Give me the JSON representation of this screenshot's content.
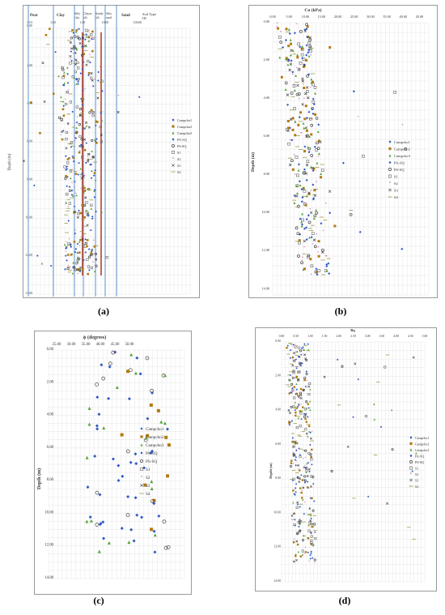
{
  "chart_data": [
    {
      "panel": "(a)",
      "type": "scatter",
      "xlabel": "",
      "ylabel": "Depth (m)",
      "header_zones": [
        "Peat",
        "Clay",
        "Silty clay",
        "Clayey silt",
        "Sandy silt",
        "Silty sand",
        "Sand"
      ],
      "header_right": "Soil Type ID",
      "xticks": [
        "0.01",
        "0.10",
        "1.00",
        "10.00",
        "100.00"
      ],
      "yticks": [
        "0.00",
        "2.00",
        "4.00",
        "6.00",
        "8.00",
        "10.00",
        "12.00",
        "14.00"
      ],
      "ylim": [
        0,
        14
      ],
      "legend": [
        "Campcho1",
        "Campcho2",
        "Campcho3",
        "PA-SQ",
        "PS-SQ",
        "S1",
        "S2",
        "S3",
        "S4"
      ],
      "series_colors": [
        "#3355cc",
        "#b8860b",
        "#66aa44",
        "#3366cc",
        "#555555",
        "#888888",
        "#cc44aa",
        "#444444",
        "#999966"
      ],
      "zone_boundaries": [
        0.12,
        0.27,
        0.32,
        0.38,
        0.46,
        0.55
      ],
      "red_lines": [
        0.36,
        0.49
      ],
      "points": []
    },
    {
      "panel": "(b)",
      "type": "scatter",
      "xlabel": "Cu (kPa)",
      "ylabel": "Depth (m)",
      "xticks": [
        "0.00",
        "5.00",
        "10.00",
        "15.00",
        "20.00",
        "25.00",
        "30.00",
        "35.00",
        "40.00",
        "45.00"
      ],
      "yticks": [
        "0.00",
        "2.00",
        "4.00",
        "6.00",
        "8.00",
        "10.00",
        "12.00",
        "14.00"
      ],
      "xlim": [
        0,
        45
      ],
      "ylim": [
        0,
        14
      ],
      "legend": [
        "Campcho1",
        "Campcho2",
        "Campcho3",
        "PA-SQ",
        "PS-SQ",
        "S1",
        "S2",
        "S3",
        "S4"
      ],
      "series": []
    },
    {
      "panel": "(c)",
      "type": "scatter",
      "xlabel": "ϕ (degrees)",
      "ylabel": "Depth (m)",
      "xticks": [
        "25.00",
        "30.00",
        "35.00",
        "40.00",
        "45.00",
        "50.00"
      ],
      "yticks": [
        "0.00",
        "2.00",
        "4.00",
        "6.00",
        "8.00",
        "10.00",
        "12.00",
        "14.00"
      ],
      "xlim": [
        22,
        52
      ],
      "ylim": [
        0,
        14
      ],
      "legend": [
        "Campcho1",
        "Campcho2",
        "Campcho3",
        "PA-SQ",
        "PS-SQ",
        "S1",
        "S2",
        "S3",
        "S4"
      ],
      "series": []
    },
    {
      "panel": "(d)",
      "type": "scatter",
      "xlabel": "Bq",
      "ylabel": "Depth (m)",
      "xticks": [
        "0.00",
        "0.50",
        "1.00",
        "1.50",
        "2.00",
        "2.50",
        "3.00",
        "3.50",
        "4.00",
        "4.50",
        "5.00"
      ],
      "yticks": [
        "0.00",
        "2.00",
        "4.00",
        "6.00",
        "8.00",
        "10.00",
        "12.00",
        "14.00"
      ],
      "xlim": [
        0,
        5
      ],
      "ylim": [
        0,
        14
      ],
      "legend": [
        "Campcho1",
        "Campcho2",
        "Campcho3",
        "PA-SQ",
        "PS-SQ",
        "S1",
        "S2",
        "S3",
        "S4"
      ],
      "series": []
    }
  ],
  "panel_labels": [
    "(a)",
    "(b)",
    "(c)",
    "(d)"
  ],
  "marker_styles": [
    {
      "name": "Campcho1",
      "shape": "diamond",
      "color": "#2f58c8"
    },
    {
      "name": "Campcho2",
      "shape": "square",
      "color": "#b07a12"
    },
    {
      "name": "Campcho3",
      "shape": "triangle",
      "color": "#5aa33c"
    },
    {
      "name": "PA-SQ",
      "shape": "diamond",
      "color": "#2f58c8"
    },
    {
      "name": "PS-SQ",
      "shape": "circle",
      "color": "#444444"
    },
    {
      "name": "S1",
      "shape": "square-open",
      "color": "#666666"
    },
    {
      "name": "S2",
      "shape": "star",
      "color": "#c040a0"
    },
    {
      "name": "S3",
      "shape": "x",
      "color": "#333333"
    },
    {
      "name": "S4",
      "shape": "dash",
      "color": "#9a9a4a"
    }
  ]
}
